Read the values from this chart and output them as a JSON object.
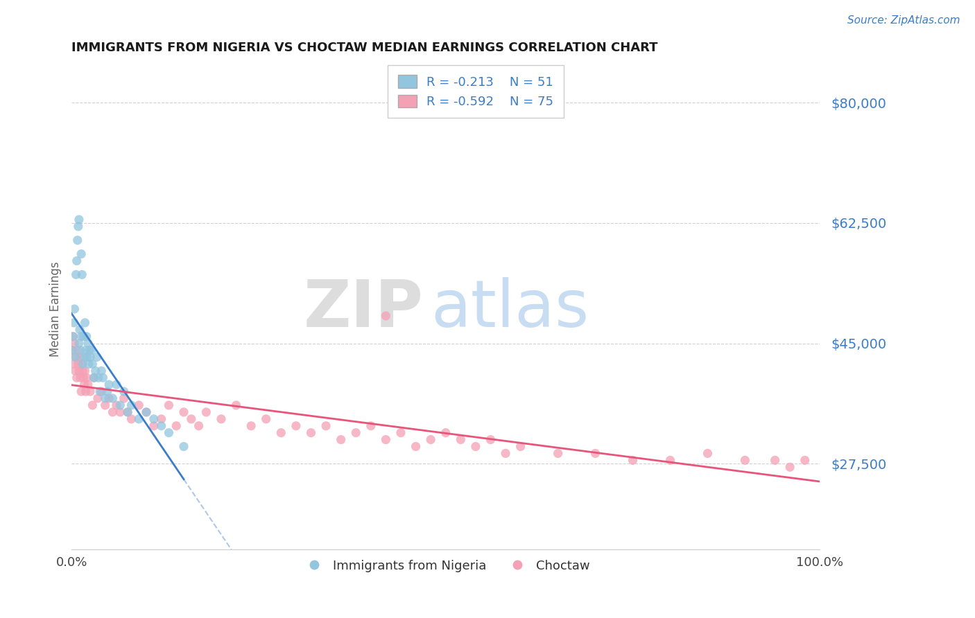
{
  "title": "IMMIGRANTS FROM NIGERIA VS CHOCTAW MEDIAN EARNINGS CORRELATION CHART",
  "source_text": "Source: ZipAtlas.com",
  "ylabel": "Median Earnings",
  "xlim": [
    0,
    1.0
  ],
  "ylim": [
    15000,
    85000
  ],
  "xtick_labels": [
    "0.0%",
    "100.0%"
  ],
  "ytick_values": [
    27500,
    45000,
    62500,
    80000
  ],
  "ytick_labels": [
    "$27,500",
    "$45,000",
    "$62,500",
    "$80,000"
  ],
  "legend_r1": "R = -0.213",
  "legend_n1": "N = 51",
  "legend_r2": "R = -0.592",
  "legend_n2": "N = 75",
  "color_blue": "#92c5de",
  "color_pink": "#f4a0b5",
  "color_blue_line": "#3a7dc9",
  "color_pink_line": "#e8547a",
  "color_dashed": "#aec8e8",
  "color_grid": "#d0d0d0",
  "color_axis_label": "#3a7dc9",
  "color_title": "#1a1a1a",
  "watermark_zip": "ZIP",
  "watermark_atlas": "atlas",
  "nigeria_x": [
    0.001,
    0.002,
    0.003,
    0.004,
    0.005,
    0.006,
    0.007,
    0.008,
    0.009,
    0.01,
    0.01,
    0.011,
    0.012,
    0.013,
    0.013,
    0.014,
    0.015,
    0.016,
    0.017,
    0.018,
    0.019,
    0.02,
    0.021,
    0.022,
    0.023,
    0.024,
    0.025,
    0.027,
    0.028,
    0.03,
    0.032,
    0.034,
    0.036,
    0.038,
    0.04,
    0.042,
    0.045,
    0.048,
    0.05,
    0.055,
    0.06,
    0.065,
    0.07,
    0.075,
    0.08,
    0.09,
    0.1,
    0.11,
    0.12,
    0.13,
    0.15
  ],
  "nigeria_y": [
    44000,
    46000,
    48000,
    50000,
    43000,
    55000,
    57000,
    60000,
    62000,
    63000,
    45000,
    47000,
    44000,
    46000,
    58000,
    55000,
    42000,
    46000,
    43000,
    48000,
    44000,
    46000,
    43000,
    45000,
    42000,
    44000,
    43000,
    44000,
    42000,
    40000,
    41000,
    43000,
    40000,
    38000,
    41000,
    40000,
    37000,
    38000,
    39000,
    37000,
    39000,
    36000,
    38000,
    35000,
    36000,
    34000,
    35000,
    34000,
    33000,
    32000,
    30000
  ],
  "choctaw_x": [
    0.001,
    0.002,
    0.003,
    0.004,
    0.005,
    0.006,
    0.007,
    0.008,
    0.009,
    0.01,
    0.011,
    0.012,
    0.013,
    0.014,
    0.015,
    0.016,
    0.017,
    0.018,
    0.019,
    0.02,
    0.022,
    0.025,
    0.028,
    0.03,
    0.035,
    0.04,
    0.045,
    0.05,
    0.055,
    0.06,
    0.065,
    0.07,
    0.075,
    0.08,
    0.09,
    0.1,
    0.11,
    0.12,
    0.13,
    0.14,
    0.15,
    0.16,
    0.17,
    0.18,
    0.2,
    0.22,
    0.24,
    0.26,
    0.28,
    0.3,
    0.32,
    0.34,
    0.36,
    0.38,
    0.4,
    0.42,
    0.44,
    0.46,
    0.48,
    0.5,
    0.52,
    0.54,
    0.56,
    0.58,
    0.6,
    0.65,
    0.7,
    0.75,
    0.8,
    0.85,
    0.9,
    0.94,
    0.96,
    0.98,
    0.42
  ],
  "choctaw_y": [
    44000,
    46000,
    42000,
    45000,
    41000,
    43000,
    40000,
    44000,
    42000,
    41000,
    43000,
    40000,
    38000,
    42000,
    41000,
    40000,
    39000,
    41000,
    38000,
    40000,
    39000,
    38000,
    36000,
    40000,
    37000,
    38000,
    36000,
    37000,
    35000,
    36000,
    35000,
    37000,
    35000,
    34000,
    36000,
    35000,
    33000,
    34000,
    36000,
    33000,
    35000,
    34000,
    33000,
    35000,
    34000,
    36000,
    33000,
    34000,
    32000,
    33000,
    32000,
    33000,
    31000,
    32000,
    33000,
    31000,
    32000,
    30000,
    31000,
    32000,
    31000,
    30000,
    31000,
    29000,
    30000,
    29000,
    29000,
    28000,
    28000,
    29000,
    28000,
    28000,
    27000,
    28000,
    49000
  ]
}
